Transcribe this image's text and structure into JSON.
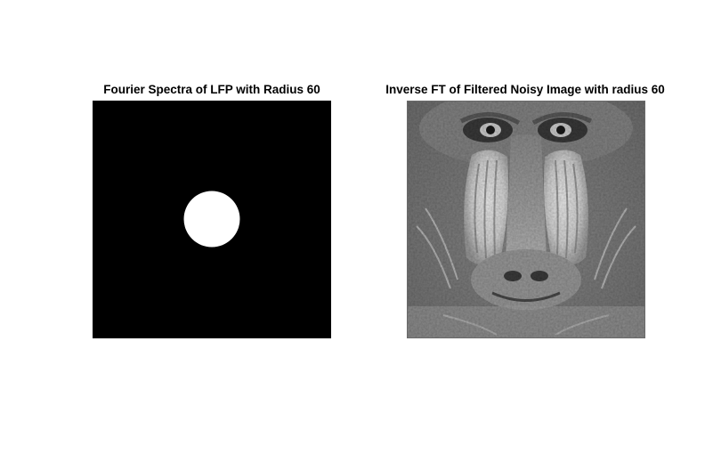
{
  "figure": {
    "panels": [
      {
        "title": "Fourier Spectra of LFP with Radius 60",
        "image": "low-pass-filter-mask",
        "background_color": "#000000",
        "mask_color": "#ffffff"
      },
      {
        "title": "Inverse FT of Filtered Noisy Image with radius 60",
        "image": "filtered-mandrill-grayscale",
        "palette": {
          "background": "#7d7d7d",
          "light": "#e6e6e6",
          "mid": "#9a9a9a",
          "dark": "#3c3c3c",
          "black": "#1a1a1a"
        }
      }
    ]
  }
}
